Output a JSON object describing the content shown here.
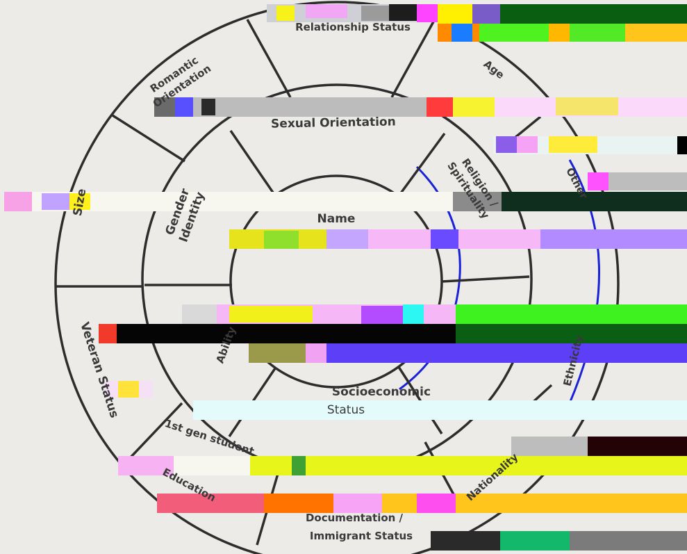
{
  "center": {
    "label": "Name"
  },
  "middle_ring": {
    "sexual_orientation": "Sexual Orientation",
    "religion": [
      "Religion /",
      "Spirituality"
    ],
    "gender_identity": [
      "Gender",
      "Identity"
    ],
    "ability": "Ability",
    "socioeconomic": "Socioeconomic",
    "status": "Status"
  },
  "outer_ring": {
    "relationship_status": "Relationship Status",
    "age": "Age",
    "other": "Other",
    "romantic_orientation": [
      "Romantic",
      "Orientation"
    ],
    "size": "Size",
    "veteran_status": "Veteran Status",
    "first_gen": "1st gen student",
    "education": "Education",
    "documentation": [
      "Documentation /",
      "Immigrant Status"
    ],
    "nationality": "Nationality",
    "ethnicity": "Ethnicity"
  },
  "colors": {
    "ink": "#2d2d2d",
    "text": "#3a3a3a",
    "pen": "#1a22d8"
  }
}
